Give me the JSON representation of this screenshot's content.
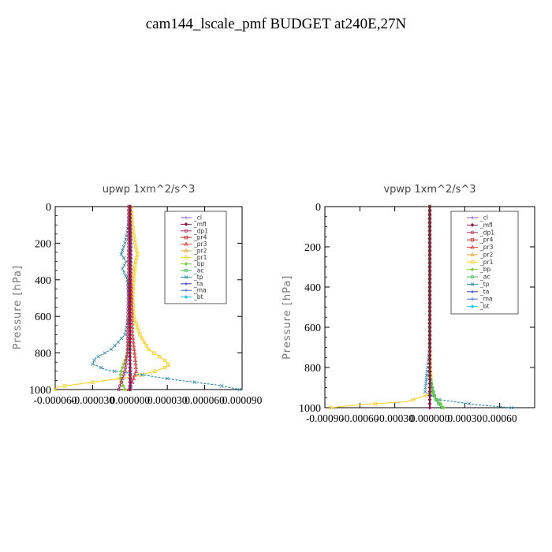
{
  "page": {
    "title": "cam144_lscale_pmf  BUDGET at240E,27N"
  },
  "legend_entries": [
    {
      "label": "_cl",
      "color": "#8a5cd6"
    },
    {
      "label": "_mfl",
      "color": "#8b1a4a"
    },
    {
      "label": "_dp1",
      "color": "#b0305a"
    },
    {
      "label": "_pr4",
      "color": "#c0302a"
    },
    {
      "label": "_pr3",
      "color": "#e04040"
    },
    {
      "label": "_pr2",
      "color": "#e8a93a"
    },
    {
      "label": "_pr1",
      "color": "#f5d22a"
    },
    {
      "label": "_bp",
      "color": "#7fcf3a"
    },
    {
      "label": "_ac",
      "color": "#3aba5a"
    },
    {
      "label": "_tp",
      "color": "#2f8fa6"
    },
    {
      "label": "_ta",
      "color": "#2a2ad0"
    },
    {
      "label": "_ma",
      "color": "#3a6ad6"
    },
    {
      "label": "_bt",
      "color": "#22c6e6"
    }
  ],
  "chart_data": [
    {
      "type": "line",
      "title": "upwp   1xm^2/s^3",
      "ylabel": "Pressure [hPa]",
      "xlim": [
        -6e-05,
        9e-05
      ],
      "ylim": [
        1000,
        0
      ],
      "xticks": [
        "-0.000060",
        "-0.000030",
        "0.000000",
        "0.000030",
        "0.000060",
        "0.000090"
      ],
      "yticks": [
        "0",
        "200",
        "400",
        "600",
        "800",
        "1000"
      ],
      "legend": "top-right",
      "series": [
        {
          "name": "_pr1",
          "color": "#f5d22a",
          "points": [
            [
              1e-06,
              0
            ],
            [
              2e-06,
              100
            ],
            [
              4e-06,
              200
            ],
            [
              6e-06,
              260
            ],
            [
              4e-06,
              320
            ],
            [
              3e-06,
              400
            ],
            [
              2e-06,
              500
            ],
            [
              3e-06,
              600
            ],
            [
              8e-06,
              700
            ],
            [
              1.5e-05,
              780
            ],
            [
              2.8e-05,
              840
            ],
            [
              3.2e-05,
              870
            ],
            [
              2e-05,
              900
            ],
            [
              2e-06,
              930
            ],
            [
              -3e-05,
              960
            ],
            [
              -5.8e-05,
              985
            ],
            [
              -6e-05,
              1000
            ]
          ]
        },
        {
          "name": "_tp",
          "color": "#2f8fa6",
          "points": [
            [
              0.0,
              0
            ],
            [
              -1e-06,
              100
            ],
            [
              -4e-06,
              200
            ],
            [
              -7e-06,
              260
            ],
            [
              -3e-06,
              300
            ],
            [
              -6e-06,
              340
            ],
            [
              -2e-06,
              400
            ],
            [
              -1e-06,
              500
            ],
            [
              -1e-06,
              600
            ],
            [
              -4e-06,
              700
            ],
            [
              -1.5e-05,
              780
            ],
            [
              -2.8e-05,
              830
            ],
            [
              -3e-05,
              860
            ],
            [
              -1.8e-05,
              895
            ],
            [
              1e-05,
              920
            ],
            [
              4e-05,
              950
            ],
            [
              7e-05,
              975
            ],
            [
              8.8e-05,
              1000
            ]
          ]
        },
        {
          "name": "_bp",
          "color": "#7fcf3a",
          "points": [
            [
              0.0,
              0
            ],
            [
              0.0,
              400
            ],
            [
              0.0,
              700
            ],
            [
              -2e-06,
              800
            ],
            [
              -6e-06,
              880
            ],
            [
              -8e-06,
              930
            ],
            [
              -6e-06,
              970
            ],
            [
              -4e-06,
              1000
            ]
          ]
        },
        {
          "name": "_pr3",
          "color": "#e04040",
          "points": [
            [
              0.0,
              0
            ],
            [
              1e-06,
              400
            ],
            [
              2e-06,
              700
            ],
            [
              4e-06,
              820
            ],
            [
              5e-06,
              900
            ],
            [
              2e-06,
              960
            ],
            [
              -1e-06,
              1000
            ]
          ]
        },
        {
          "name": "_dp1",
          "color": "#b0305a",
          "points": [
            [
              -1e-06,
              0
            ],
            [
              -1e-06,
              400
            ],
            [
              -2e-06,
              800
            ],
            [
              -4e-06,
              900
            ],
            [
              -7e-06,
              960
            ],
            [
              -9e-06,
              1000
            ]
          ]
        },
        {
          "name": "_cl",
          "color": "#8a5cd6",
          "points": [
            [
              0.0,
              0
            ],
            [
              1e-06,
              200
            ],
            [
              0.0,
              500
            ],
            [
              0.0,
              800
            ],
            [
              1e-06,
              1000
            ]
          ]
        },
        {
          "name": "_mfl",
          "color": "#8b1a4a",
          "points": [
            [
              0.0,
              0
            ],
            [
              0.0,
              1000
            ]
          ]
        }
      ]
    },
    {
      "type": "line",
      "title": "vpwp   1xm^2/s^3",
      "ylabel": "Pressure [hPa]",
      "xlim": [
        -0.0009,
        0.0009
      ],
      "ylim": [
        1000,
        0
      ],
      "xticks": [
        "-0.00090",
        "-0.00060",
        "-0.00030",
        "0.000000",
        "0.00030",
        "0.00060"
      ],
      "yticks": [
        "0",
        "200",
        "400",
        "600",
        "800",
        "1000"
      ],
      "legend": "top-right",
      "series": [
        {
          "name": "_pr1",
          "color": "#f5d22a",
          "points": [
            [
              0.0,
              0
            ],
            [
              0.0,
              700
            ],
            [
              8e-06,
              850
            ],
            [
              2e-05,
              930
            ],
            [
              -0.0002,
              970
            ],
            [
              -0.0006,
              985
            ],
            [
              -0.00085,
              1000
            ]
          ]
        },
        {
          "name": "_tp",
          "color": "#2f8fa6",
          "points": [
            [
              0.0,
              0
            ],
            [
              0.0,
              700
            ],
            [
              -3e-05,
              860
            ],
            [
              -4e-05,
              920
            ],
            [
              8e-05,
              960
            ],
            [
              0.0004,
              985
            ],
            [
              0.0007,
              1000
            ]
          ]
        },
        {
          "name": "_bp",
          "color": "#7fcf3a",
          "points": [
            [
              0.0,
              0
            ],
            [
              0.0,
              800
            ],
            [
              2e-05,
              930
            ],
            [
              8e-05,
              970
            ],
            [
              0.00012,
              1000
            ]
          ]
        },
        {
          "name": "_ac",
          "color": "#3aba5a",
          "points": [
            [
              0.0,
              0
            ],
            [
              0.0,
              850
            ],
            [
              5e-05,
              960
            ],
            [
              0.0001,
              1000
            ]
          ]
        },
        {
          "name": "_cl",
          "color": "#8a5cd6",
          "points": [
            [
              0.0,
              0
            ],
            [
              0.0,
              1000
            ]
          ]
        },
        {
          "name": "_mfl",
          "color": "#8b1a4a",
          "points": [
            [
              0.0,
              0
            ],
            [
              0.0,
              1000
            ]
          ]
        }
      ]
    }
  ]
}
